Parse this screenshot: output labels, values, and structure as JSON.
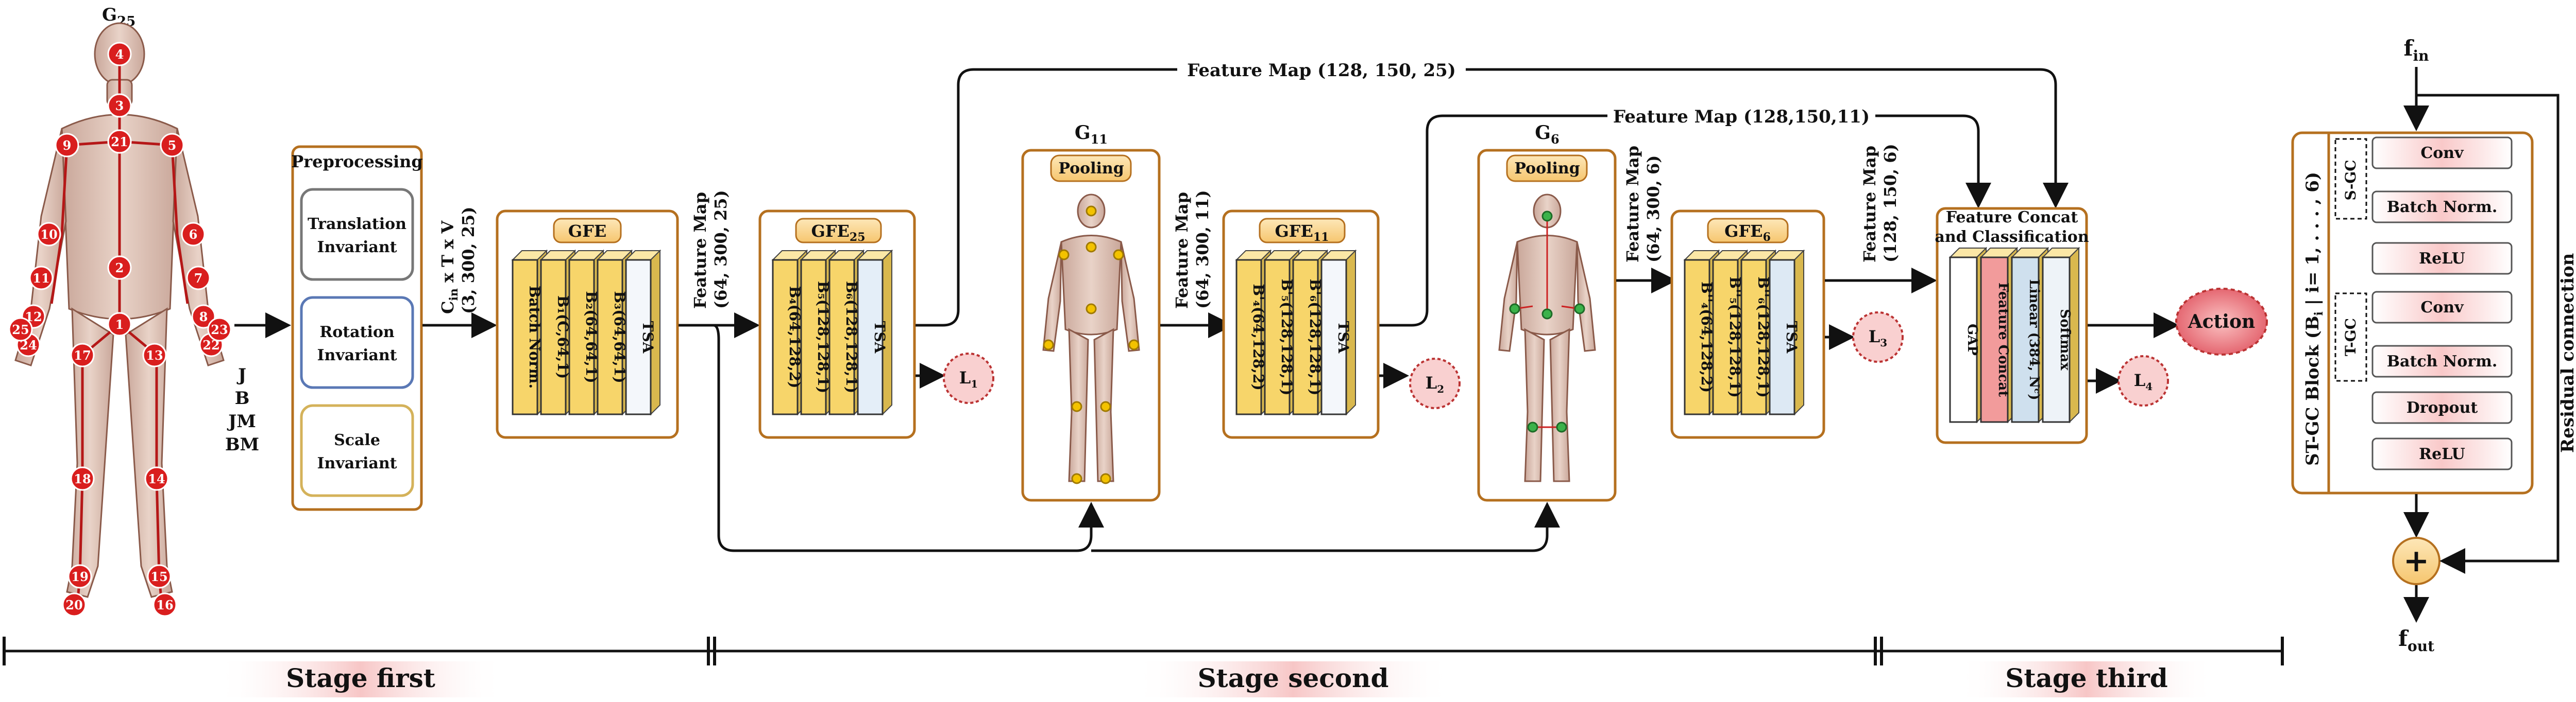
{
  "colors": {
    "accent_border": "#b5701f",
    "layer_fill": "#f7d56a",
    "tsa_fill": "#f4f7fb",
    "loss_fill": "#f9d0d0",
    "action_fill": "#e8606a",
    "joint": "#d91e1e"
  },
  "skeleton": {
    "title_main": "G",
    "title_sub": "25",
    "joints": [
      "1",
      "2",
      "3",
      "4",
      "5",
      "6",
      "7",
      "8",
      "9",
      "10",
      "11",
      "12",
      "13",
      "14",
      "15",
      "16",
      "17",
      "18",
      "19",
      "20",
      "21",
      "22",
      "23",
      "24",
      "25"
    ],
    "input_labels": [
      "J",
      "B",
      "JM",
      "BM"
    ]
  },
  "preprocessing": {
    "title": "Preprocessing",
    "items": [
      {
        "line1": "Translation",
        "line2": "Invariant"
      },
      {
        "line1": "Rotation",
        "line2": "Invariant"
      },
      {
        "line1": "Scale",
        "line2": "Invariant"
      }
    ]
  },
  "arrow1": {
    "line1_main": "C",
    "line1_sub": "in",
    "line1_rest": " x T x V",
    "line2": "(3, 300, 25)"
  },
  "gfe": {
    "title": "GFE",
    "layers": [
      "Batch Norm.",
      "B₁(C,64,1)",
      "B₂(64,64,1)",
      "B₃(64,64,1)",
      "TSA"
    ]
  },
  "arrow2": {
    "line1": "Feature Map",
    "line2": "(64, 300, 25)"
  },
  "gfe25": {
    "title_main": "GFE",
    "title_sub": "25",
    "layers": [
      "B₄(64,128,2)",
      "B₅(128,128,1)",
      "B₆(128,128,1)",
      "TSA"
    ],
    "loss_main": "L",
    "loss_sub": "1"
  },
  "pool11": {
    "graph_main": "G",
    "graph_sub": "11",
    "title": "Pooling"
  },
  "arrow3": {
    "line1": "Feature Map",
    "line2": "(64, 300, 11)"
  },
  "gfe11": {
    "title_main": "GFE",
    "title_sub": "11",
    "layers": [
      "B'₄(64,128,2)",
      "B'₅(128,128,1)",
      "B'₆(128,128,1)",
      "TSA"
    ],
    "loss_main": "L",
    "loss_sub": "2"
  },
  "pool6": {
    "graph_main": "G",
    "graph_sub": "6",
    "title": "Pooling"
  },
  "arrow4": {
    "line1": "Feature Map",
    "line2": "(64, 300, 6)"
  },
  "gfe6": {
    "title_main": "GFE",
    "title_sub": "6",
    "layers": [
      "B''₄(64,128,2)",
      "B''₅(128,128,1)",
      "B''₆(128,128,1)",
      "TSA"
    ],
    "loss_main": "L",
    "loss_sub": "3"
  },
  "arrow5": {
    "line1": "Feature Map",
    "line2": "(128, 150, 6)"
  },
  "top_maps": {
    "map25": "Feature Map (128, 150, 25)",
    "map11": "Feature Map (128,150,11)"
  },
  "concat": {
    "title_line1": "Feature Concat",
    "title_line2": "and Classification",
    "layers": [
      "GAP",
      "Feature Concat",
      "Linear (384, Nᶜ)",
      "Softmax"
    ],
    "loss_main": "L",
    "loss_sub": "4"
  },
  "action": {
    "label": "Action"
  },
  "stgc": {
    "fin_main": "f",
    "fin_sub": "in",
    "fout_main": "f",
    "fout_sub": "out",
    "block_label": "ST-GC Block (B",
    "block_label_sub": "i",
    "block_label_rest": " | i= 1, . . . , 6)",
    "sgc_label": "S-GC",
    "tgc_label": "T-GC",
    "layers": [
      "Conv",
      "Batch Norm.",
      "ReLU",
      "Conv",
      "Batch Norm.",
      "Dropout",
      "ReLU"
    ],
    "residual": "Residual connection",
    "plus": "+"
  },
  "stages": [
    "Stage first",
    "Stage second",
    "Stage third"
  ]
}
